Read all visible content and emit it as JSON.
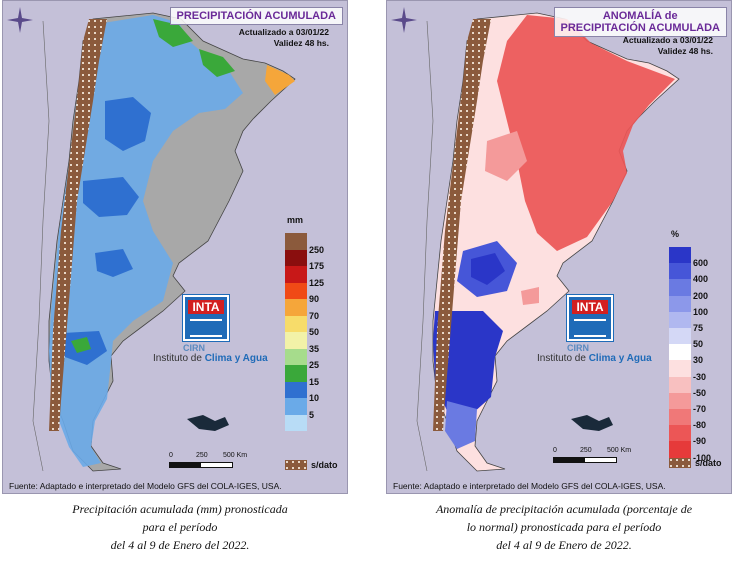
{
  "left_panel": {
    "title": "PRECIPITACIÓN ACUMULADA",
    "updated": "Actualizado a 03/01/22",
    "validity": "Validez 48 hs.",
    "legend_unit": "mm",
    "legend": [
      {
        "label": "250",
        "color": "#8b5a3c"
      },
      {
        "label": "175",
        "color": "#8a0e0e"
      },
      {
        "label": "125",
        "color": "#c81818"
      },
      {
        "label": "90",
        "color": "#f04a16"
      },
      {
        "label": "70",
        "color": "#f5a63a"
      },
      {
        "label": "50",
        "color": "#f7dc6a"
      },
      {
        "label": "35",
        "color": "#f2f2a8"
      },
      {
        "label": "25",
        "color": "#a6dc8c"
      },
      {
        "label": "15",
        "color": "#3aa83a"
      },
      {
        "label": "10",
        "color": "#2f70d0"
      },
      {
        "label": "5",
        "color": "#6aaae8"
      },
      {
        "label": "",
        "color": "#b8dcf6"
      }
    ],
    "scale_labels": [
      "0",
      "250",
      "500 Km"
    ],
    "sdato": "s/dato",
    "source": "Fuente: Adaptado e interpretado del Modelo GFS del COLA-IGES, USA."
  },
  "right_panel": {
    "title_line1": "ANOMALÍA de",
    "title_line2": "PRECIPITACIÓN ACUMULADA",
    "updated": "Actualizado a 03/01/22",
    "validity": "Validez 48 hs.",
    "legend_unit": "%",
    "legend": [
      {
        "label": "600",
        "color": "#2a36c8"
      },
      {
        "label": "400",
        "color": "#4656d8"
      },
      {
        "label": "200",
        "color": "#6a7ae2"
      },
      {
        "label": "100",
        "color": "#8c98ea"
      },
      {
        "label": "75",
        "color": "#b0b8f0"
      },
      {
        "label": "50",
        "color": "#d4d8f6"
      },
      {
        "label": "30",
        "color": "#ffffff"
      },
      {
        "label": "-30",
        "color": "#fde0e0"
      },
      {
        "label": "-50",
        "color": "#f8c0c0"
      },
      {
        "label": "-70",
        "color": "#f49a9a"
      },
      {
        "label": "-80",
        "color": "#f07878"
      },
      {
        "label": "-90",
        "color": "#ec5656"
      },
      {
        "label": "-100",
        "color": "#e63a3a"
      }
    ],
    "scale_labels": [
      "0",
      "250",
      "500 Km"
    ],
    "sdato": "s/dato",
    "source": "Fuente: Adaptado e interpretado del Modelo GFS del COLA-IGES, USA."
  },
  "logo": {
    "inta": "INTA",
    "cirn": "CIRN",
    "institute_prefix": "Instituto de ",
    "institute_highlight": "Clima y Agua"
  },
  "captions": {
    "left": [
      "Precipitación acumulada (mm) pronosticada",
      "para el período",
      "del 4 al 9 de Enero del 2022."
    ],
    "right": [
      "Anomalía de precipitación acumulada (porcentaje de",
      "lo normal) pronosticada para el período",
      "del 4 al 9 de Enero de 2022."
    ]
  },
  "colors": {
    "title_purple": "#6a2a98",
    "background": "#c4c0d8",
    "no_data_brown": "#8b5a3c"
  }
}
